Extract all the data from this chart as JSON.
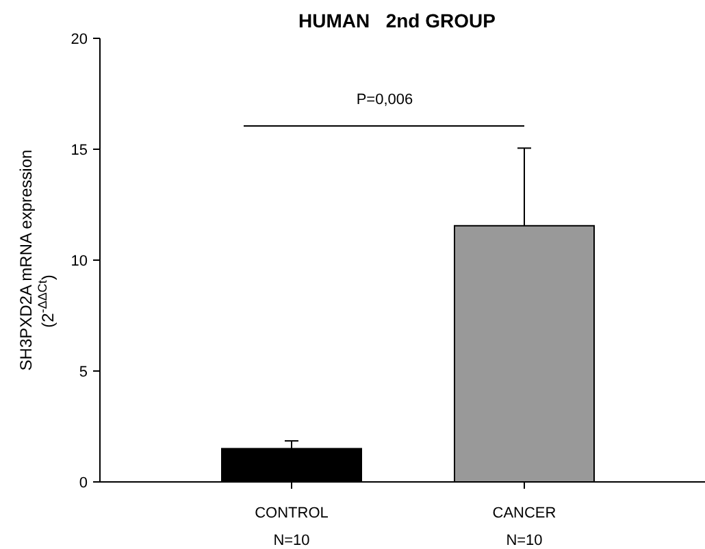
{
  "chart_data": {
    "type": "bar",
    "title": "HUMAN   2nd GROUP",
    "ylabel": "SH3PXD2A mRNA expression (2$^{-ΔΔCt}$)",
    "categories": [
      "CONTROL",
      "CANCER"
    ],
    "values": [
      1.5,
      11.55
    ],
    "colors": [
      "#000000",
      "#999999"
    ],
    "errors": [
      [
        1.5,
        1.85
      ],
      [
        11.55,
        15.05
      ]
    ],
    "ylim": [
      0,
      20
    ],
    "yticks": [
      0,
      5,
      10,
      15,
      20
    ],
    "ref_lines": [
      {
        "axis": "y",
        "value": 16.05,
        "color": "#000000"
      }
    ],
    "annotations": [
      "P=0,006",
      "N=10",
      "N=10"
    ]
  }
}
